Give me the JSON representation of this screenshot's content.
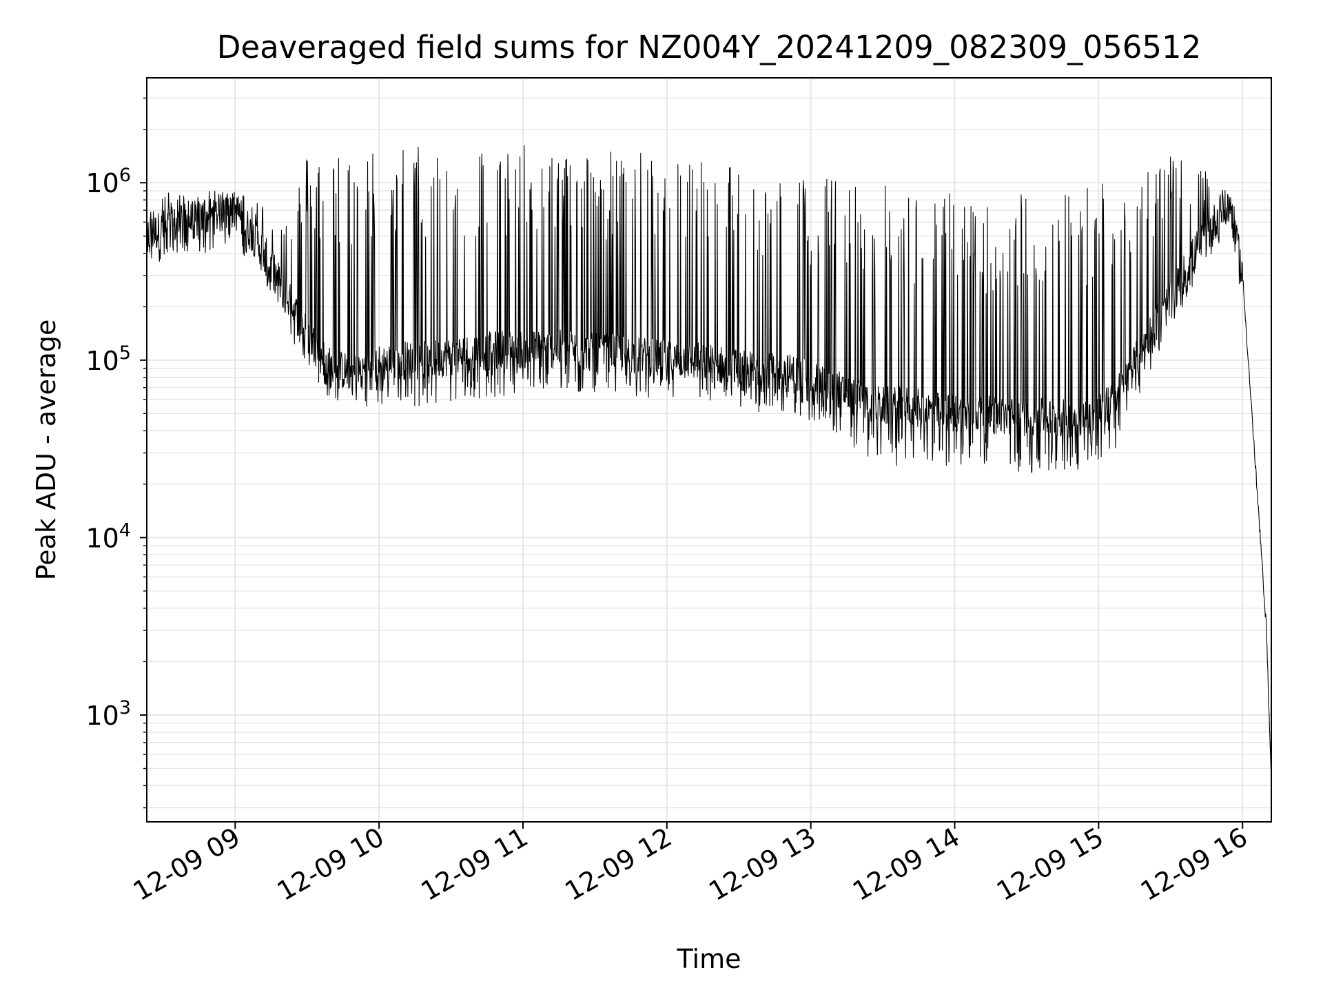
{
  "chart_data": {
    "type": "line",
    "title": "Deaveraged field sums for NZ004Y_20241209_082309_056512",
    "xlabel": "Time",
    "ylabel": "Peak ADU - average",
    "yscale": "log",
    "xlim": [
      "2024-12-09 08:23:09",
      "2024-12-09 16:12:00"
    ],
    "ylim": [
      250,
      3900000
    ],
    "grid": true,
    "line_color": "#000000",
    "grid_color": "#e5e5e5",
    "x_ticks": [
      {
        "label": "12-09 09",
        "value": "2024-12-09 09:00"
      },
      {
        "label": "12-09 10",
        "value": "2024-12-09 10:00"
      },
      {
        "label": "12-09 11",
        "value": "2024-12-09 11:00"
      },
      {
        "label": "12-09 12",
        "value": "2024-12-09 12:00"
      },
      {
        "label": "12-09 13",
        "value": "2024-12-09 13:00"
      },
      {
        "label": "12-09 14",
        "value": "2024-12-09 14:00"
      },
      {
        "label": "12-09 15",
        "value": "2024-12-09 15:00"
      },
      {
        "label": "12-09 16",
        "value": "2024-12-09 16:00"
      }
    ],
    "y_ticks": [
      {
        "base": "10",
        "exp": "3",
        "value": 1000
      },
      {
        "base": "10",
        "exp": "4",
        "value": 10000
      },
      {
        "base": "10",
        "exp": "5",
        "value": 100000
      },
      {
        "base": "10",
        "exp": "6",
        "value": 1000000
      }
    ],
    "series": [
      {
        "x": [
          "2024-12-09 08:23",
          "2024-12-09 08:30",
          "2024-12-09 08:40",
          "2024-12-09 08:50",
          "2024-12-09 09:00",
          "2024-12-09 09:10",
          "2024-12-09 09:20",
          "2024-12-09 09:30",
          "2024-12-09 09:40",
          "2024-12-09 09:50",
          "2024-12-09 10:00",
          "2024-12-09 10:10",
          "2024-12-09 10:20",
          "2024-12-09 10:30",
          "2024-12-09 10:40",
          "2024-12-09 10:50",
          "2024-12-09 11:00",
          "2024-12-09 11:10",
          "2024-12-09 11:20",
          "2024-12-09 11:30",
          "2024-12-09 11:40",
          "2024-12-09 11:50",
          "2024-12-09 12:00",
          "2024-12-09 12:10",
          "2024-12-09 12:20",
          "2024-12-09 12:30",
          "2024-12-09 12:40",
          "2024-12-09 12:50",
          "2024-12-09 13:00",
          "2024-12-09 13:10",
          "2024-12-09 13:20",
          "2024-12-09 13:30",
          "2024-12-09 13:40",
          "2024-12-09 13:50",
          "2024-12-09 14:00",
          "2024-12-09 14:10",
          "2024-12-09 14:20",
          "2024-12-09 14:30",
          "2024-12-09 14:40",
          "2024-12-09 14:50",
          "2024-12-09 15:00",
          "2024-12-09 15:10",
          "2024-12-09 15:20",
          "2024-12-09 15:30",
          "2024-12-09 15:40",
          "2024-12-09 15:50",
          "2024-12-09 15:55",
          "2024-12-09 16:00",
          "2024-12-09 16:05",
          "2024-12-09 16:10",
          "2024-12-09 16:12"
        ],
        "base": [
          500000,
          550000,
          600000,
          650000,
          700000,
          450000,
          250000,
          140000,
          90000,
          85000,
          95000,
          100000,
          100000,
          105000,
          110000,
          115000,
          115000,
          115000,
          115000,
          110000,
          110000,
          105000,
          100000,
          100000,
          95000,
          90000,
          85000,
          85000,
          80000,
          70000,
          60000,
          55000,
          55000,
          52000,
          50000,
          50000,
          48000,
          48000,
          47000,
          47000,
          50000,
          70000,
          130000,
          220000,
          400000,
          650000,
          750000,
          300000,
          30000,
          3000,
          400
        ],
        "high": [
          700000,
          900000,
          850000,
          900000,
          900000,
          800000,
          600000,
          1500000,
          1600000,
          1600000,
          1600000,
          1700000,
          1700000,
          1700000,
          1700000,
          1700000,
          1650000,
          1600000,
          1600000,
          1600000,
          1550000,
          1500000,
          1500000,
          1500000,
          1400000,
          1300000,
          1200000,
          1100000,
          1100000,
          1100000,
          1000000,
          1000000,
          900000,
          900000,
          900000,
          850000,
          850000,
          900000,
          900000,
          1000000,
          1100000,
          1200000,
          1300000,
          1400000,
          1300000,
          1000000,
          850000,
          400000,
          40000,
          4000,
          500
        ],
        "low": [
          350000,
          350000,
          400000,
          400000,
          450000,
          300000,
          180000,
          80000,
          60000,
          55000,
          55000,
          55000,
          55000,
          55000,
          60000,
          60000,
          65000,
          65000,
          65000,
          65000,
          65000,
          60000,
          60000,
          55000,
          55000,
          52000,
          50000,
          50000,
          45000,
          38000,
          28000,
          26000,
          25000,
          25000,
          25000,
          24000,
          24000,
          23000,
          23000,
          24000,
          25000,
          35000,
          80000,
          150000,
          260000,
          450000,
          600000,
          200000,
          23000,
          2500,
          350
        ]
      }
    ]
  }
}
